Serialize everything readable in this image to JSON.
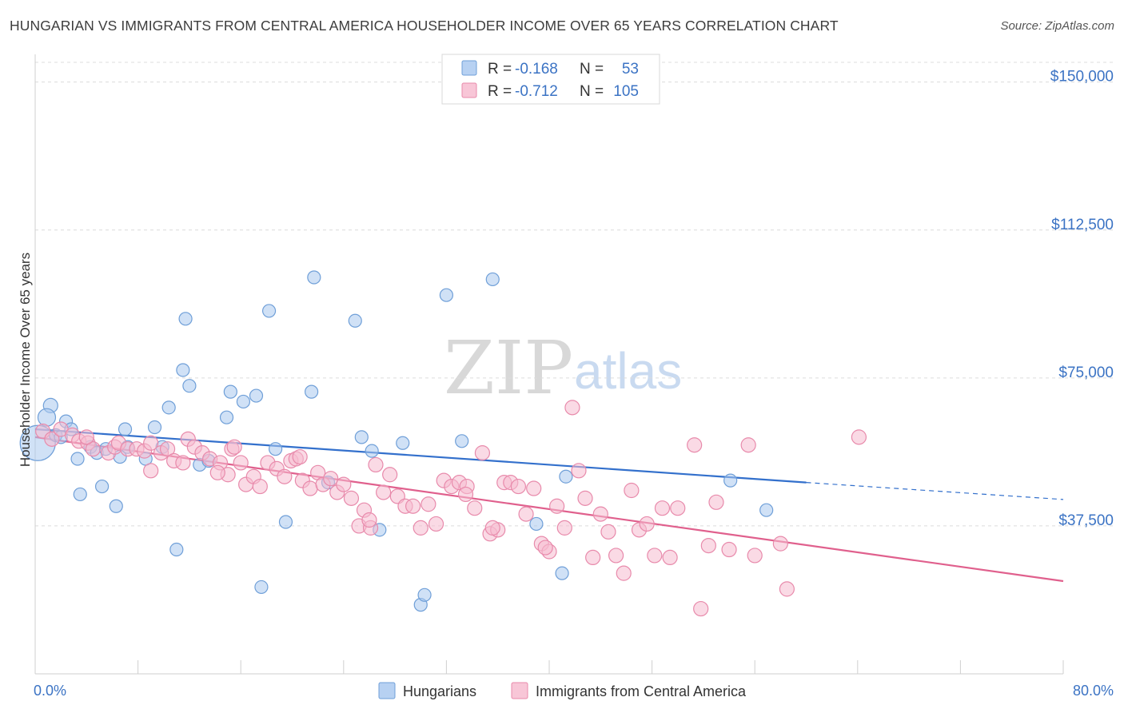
{
  "chart_data": {
    "type": "scatter",
    "title": "HUNGARIAN VS IMMIGRANTS FROM CENTRAL AMERICA HOUSEHOLDER INCOME OVER 65 YEARS CORRELATION CHART",
    "source": "Source: ZipAtlas.com",
    "ylabel": "Householder Income Over 65 years",
    "xlabel_left": "0.0%",
    "xlabel_right": "80.0%",
    "xlim": [
      0,
      80
    ],
    "ylim": [
      0,
      155000
    ],
    "yticks": [
      {
        "value": 37500,
        "label": "$37,500"
      },
      {
        "value": 75000,
        "label": "$75,000"
      },
      {
        "value": 112500,
        "label": "$112,500"
      },
      {
        "value": 150000,
        "label": "$150,000"
      }
    ],
    "watermark": {
      "zip": "ZIP",
      "atlas": "atlas"
    },
    "legend": [
      {
        "r_label": "R = ",
        "r_value": "-0.168",
        "n_label": "N = ",
        "n_value": "53"
      },
      {
        "r_label": "R = ",
        "r_value": "-0.712",
        "n_label": "N = ",
        "n_value": "105"
      }
    ],
    "series": [
      {
        "name": "Hungarians",
        "color": "#a9c8ef",
        "stroke": "#6f9fd8",
        "line_color": "#3370cc",
        "trend": {
          "x0": 0,
          "y0": 62000,
          "x1": 60,
          "y1": 48500,
          "dash_to_x": 80,
          "dash_to_y": 44200
        },
        "points": [
          [
            0.2,
            58500
          ],
          [
            1.2,
            68000
          ],
          [
            0.9,
            65000
          ],
          [
            2.4,
            64000
          ],
          [
            2.8,
            62000
          ],
          [
            1.6,
            60500
          ],
          [
            4.3,
            57500
          ],
          [
            3.3,
            54500
          ],
          [
            4.8,
            56000
          ],
          [
            5.5,
            57000
          ],
          [
            7.0,
            62000
          ],
          [
            7.2,
            57500
          ],
          [
            8.6,
            54500
          ],
          [
            9.3,
            62500
          ],
          [
            9.9,
            57500
          ],
          [
            10.4,
            67500
          ],
          [
            11.5,
            77000
          ],
          [
            12.0,
            73000
          ],
          [
            11.7,
            90000
          ],
          [
            12.8,
            53000
          ],
          [
            13.5,
            54000
          ],
          [
            14.9,
            65000
          ],
          [
            15.2,
            71500
          ],
          [
            16.2,
            69000
          ],
          [
            17.2,
            70500
          ],
          [
            18.2,
            92000
          ],
          [
            18.7,
            57000
          ],
          [
            19.5,
            38500
          ],
          [
            21.7,
            100500
          ],
          [
            21.5,
            71500
          ],
          [
            22.8,
            48500
          ],
          [
            24.9,
            89500
          ],
          [
            25.4,
            60000
          ],
          [
            26.2,
            56500
          ],
          [
            26.8,
            36500
          ],
          [
            28.6,
            58500
          ],
          [
            30.0,
            17500
          ],
          [
            30.3,
            20000
          ],
          [
            32.0,
            96000
          ],
          [
            33.2,
            59000
          ],
          [
            35.6,
            100000
          ],
          [
            39.0,
            38000
          ],
          [
            41.0,
            25500
          ],
          [
            41.3,
            50000
          ],
          [
            54.1,
            49000
          ],
          [
            56.9,
            41500
          ],
          [
            5.2,
            47500
          ],
          [
            3.5,
            45500
          ],
          [
            6.3,
            42500
          ],
          [
            11.0,
            31500
          ],
          [
            17.6,
            22000
          ],
          [
            6.6,
            55000
          ],
          [
            2.0,
            60000
          ]
        ],
        "sizes": [
          44,
          18,
          22,
          16,
          16,
          16,
          16,
          16,
          16,
          16,
          16,
          16,
          16,
          16,
          16,
          16,
          16,
          16,
          16,
          16,
          16,
          16,
          16,
          16,
          16,
          16,
          16,
          16,
          16,
          16,
          16,
          16,
          16,
          16,
          16,
          16,
          16,
          16,
          16,
          16,
          16,
          16,
          16,
          16,
          16,
          16,
          16,
          16,
          16,
          16,
          16,
          16,
          16
        ]
      },
      {
        "name": "Immigrants from Central America",
        "color": "#f6bcd0",
        "stroke": "#e88aab",
        "line_color": "#e0608d",
        "trend": {
          "x0": 0,
          "y0": 60000,
          "x1": 80,
          "y1": 23500
        },
        "points": [
          [
            0.6,
            61500
          ],
          [
            1.3,
            59500
          ],
          [
            2.0,
            62000
          ],
          [
            2.9,
            60500
          ],
          [
            3.4,
            59000
          ],
          [
            4.1,
            58500
          ],
          [
            4.5,
            57000
          ],
          [
            5.7,
            56000
          ],
          [
            6.2,
            57500
          ],
          [
            6.5,
            58500
          ],
          [
            7.2,
            57000
          ],
          [
            7.9,
            57000
          ],
          [
            8.5,
            56500
          ],
          [
            9.0,
            58500
          ],
          [
            9.8,
            56000
          ],
          [
            10.3,
            57000
          ],
          [
            10.8,
            54000
          ],
          [
            11.5,
            53500
          ],
          [
            11.9,
            59500
          ],
          [
            12.4,
            57500
          ],
          [
            13.0,
            56000
          ],
          [
            13.6,
            54500
          ],
          [
            14.4,
            53500
          ],
          [
            15.0,
            50500
          ],
          [
            15.3,
            57000
          ],
          [
            16.0,
            53500
          ],
          [
            16.4,
            48000
          ],
          [
            17.0,
            50000
          ],
          [
            17.5,
            47500
          ],
          [
            18.1,
            53500
          ],
          [
            18.8,
            52000
          ],
          [
            19.4,
            50000
          ],
          [
            19.9,
            54000
          ],
          [
            20.3,
            54500
          ],
          [
            20.8,
            49000
          ],
          [
            21.4,
            47000
          ],
          [
            22.0,
            51000
          ],
          [
            22.4,
            48000
          ],
          [
            23.0,
            49500
          ],
          [
            23.5,
            46000
          ],
          [
            24.0,
            48000
          ],
          [
            24.6,
            44500
          ],
          [
            25.2,
            37500
          ],
          [
            25.6,
            41500
          ],
          [
            26.1,
            37000
          ],
          [
            26.5,
            53000
          ],
          [
            27.1,
            46000
          ],
          [
            27.6,
            50500
          ],
          [
            28.2,
            45000
          ],
          [
            28.8,
            42500
          ],
          [
            29.4,
            42500
          ],
          [
            30.0,
            37000
          ],
          [
            30.6,
            43000
          ],
          [
            31.2,
            38000
          ],
          [
            31.8,
            49000
          ],
          [
            32.4,
            47500
          ],
          [
            33.0,
            48500
          ],
          [
            33.6,
            47500
          ],
          [
            34.2,
            42000
          ],
          [
            34.8,
            56000
          ],
          [
            35.4,
            35500
          ],
          [
            36.0,
            36500
          ],
          [
            36.5,
            48500
          ],
          [
            37.0,
            48500
          ],
          [
            37.6,
            47500
          ],
          [
            38.2,
            40500
          ],
          [
            38.8,
            47000
          ],
          [
            39.4,
            33000
          ],
          [
            40.0,
            31000
          ],
          [
            40.6,
            42500
          ],
          [
            41.2,
            37000
          ],
          [
            41.8,
            67500
          ],
          [
            42.3,
            51500
          ],
          [
            42.8,
            44500
          ],
          [
            43.4,
            29500
          ],
          [
            44.0,
            40500
          ],
          [
            44.6,
            36000
          ],
          [
            45.2,
            30000
          ],
          [
            45.8,
            25500
          ],
          [
            46.4,
            46500
          ],
          [
            47.0,
            36500
          ],
          [
            47.6,
            38000
          ],
          [
            48.2,
            30000
          ],
          [
            48.8,
            42000
          ],
          [
            49.4,
            29500
          ],
          [
            51.3,
            58000
          ],
          [
            51.8,
            16500
          ],
          [
            52.4,
            32500
          ],
          [
            53.0,
            43500
          ],
          [
            54.0,
            31500
          ],
          [
            55.5,
            58000
          ],
          [
            56.0,
            30000
          ],
          [
            58.0,
            33000
          ],
          [
            58.5,
            21500
          ],
          [
            64.1,
            60000
          ],
          [
            39.7,
            32000
          ],
          [
            50.0,
            42000
          ],
          [
            35.6,
            37000
          ],
          [
            20.6,
            55000
          ],
          [
            26.0,
            39000
          ],
          [
            14.2,
            51000
          ],
          [
            9.0,
            51500
          ],
          [
            33.5,
            45500
          ],
          [
            15.5,
            57500
          ],
          [
            4.0,
            60000
          ]
        ]
      }
    ]
  }
}
